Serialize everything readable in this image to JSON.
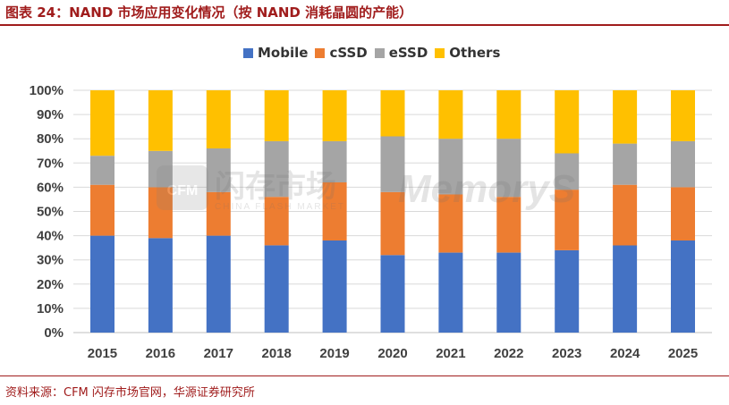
{
  "title": "图表 24：NAND 市场应用变化情况（按 NAND 消耗晶圆的产能）",
  "source": "资料来源：CFM 闪存市场官网，华源证券研究所",
  "watermark": {
    "logo": "CFM",
    "cn": "闪存市场",
    "en": "CHINA FLASH MARKET",
    "brand": "MemoryS"
  },
  "colors": {
    "Mobile": "#4472c4",
    "cSSD": "#ed7d31",
    "eSSD": "#a5a5a5",
    "Others": "#ffc000",
    "accent": "#a01c1c"
  },
  "chart_data": {
    "type": "bar",
    "stacked": true,
    "normalized": true,
    "categories": [
      "2015",
      "2016",
      "2017",
      "2018",
      "2019",
      "2020",
      "2021",
      "2022",
      "2023",
      "2024",
      "2025"
    ],
    "y_ticks": [
      "0%",
      "10%",
      "20%",
      "30%",
      "40%",
      "50%",
      "60%",
      "70%",
      "80%",
      "90%",
      "100%"
    ],
    "ylim": [
      0,
      100
    ],
    "grid": true,
    "legend_position": "top",
    "series": [
      {
        "name": "Mobile",
        "values": [
          40,
          39,
          40,
          36,
          38,
          32,
          33,
          33,
          34,
          36,
          38
        ]
      },
      {
        "name": "cSSD",
        "values": [
          21,
          21,
          18,
          20,
          24,
          26,
          24,
          23,
          25,
          25,
          22
        ]
      },
      {
        "name": "eSSD",
        "values": [
          12,
          15,
          18,
          23,
          17,
          23,
          23,
          24,
          15,
          17,
          19
        ]
      },
      {
        "name": "Others",
        "values": [
          27,
          25,
          24,
          21,
          21,
          19,
          20,
          20,
          26,
          22,
          21
        ]
      }
    ]
  }
}
